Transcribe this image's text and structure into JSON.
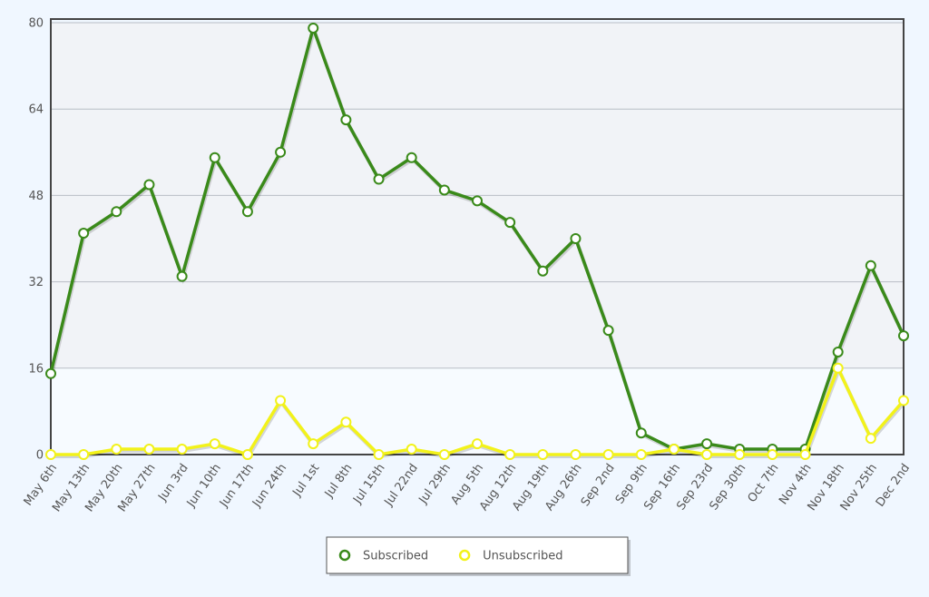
{
  "chart_data": {
    "type": "line",
    "categories": [
      "May 6th",
      "May 13th",
      "May 20th",
      "May 27th",
      "Jun 3rd",
      "Jun 10th",
      "Jun 17th",
      "Jun 24th",
      "Jul 1st",
      "Jul 8th",
      "Jul 15th",
      "Jul 22nd",
      "Jul 29th",
      "Aug 5th",
      "Aug 12th",
      "Aug 19th",
      "Aug 26th",
      "Sep 2nd",
      "Sep 9th",
      "Sep 16th",
      "Sep 23rd",
      "Sep 30th",
      "Oct 7th",
      "Nov 4th",
      "Nov 18th",
      "Nov 25th",
      "Dec 2nd"
    ],
    "series": [
      {
        "name": "Subscribed",
        "color": "#3a8a1a",
        "values": [
          15,
          41,
          45,
          50,
          33,
          55,
          45,
          56,
          79,
          62,
          51,
          55,
          49,
          47,
          43,
          34,
          40,
          23,
          4,
          1,
          2,
          1,
          1,
          1,
          19,
          35,
          22
        ]
      },
      {
        "name": "Unsubscribed",
        "color": "#f2f21a",
        "values": [
          0,
          0,
          1,
          1,
          1,
          2,
          0,
          10,
          2,
          6,
          0,
          1,
          0,
          2,
          0,
          0,
          0,
          0,
          0,
          1,
          0,
          0,
          0,
          0,
          16,
          3,
          10
        ]
      }
    ],
    "ylim": [
      0,
      80
    ],
    "yticks": [
      0,
      16,
      32,
      48,
      64,
      80
    ],
    "grid": true,
    "legend": "bottom"
  }
}
